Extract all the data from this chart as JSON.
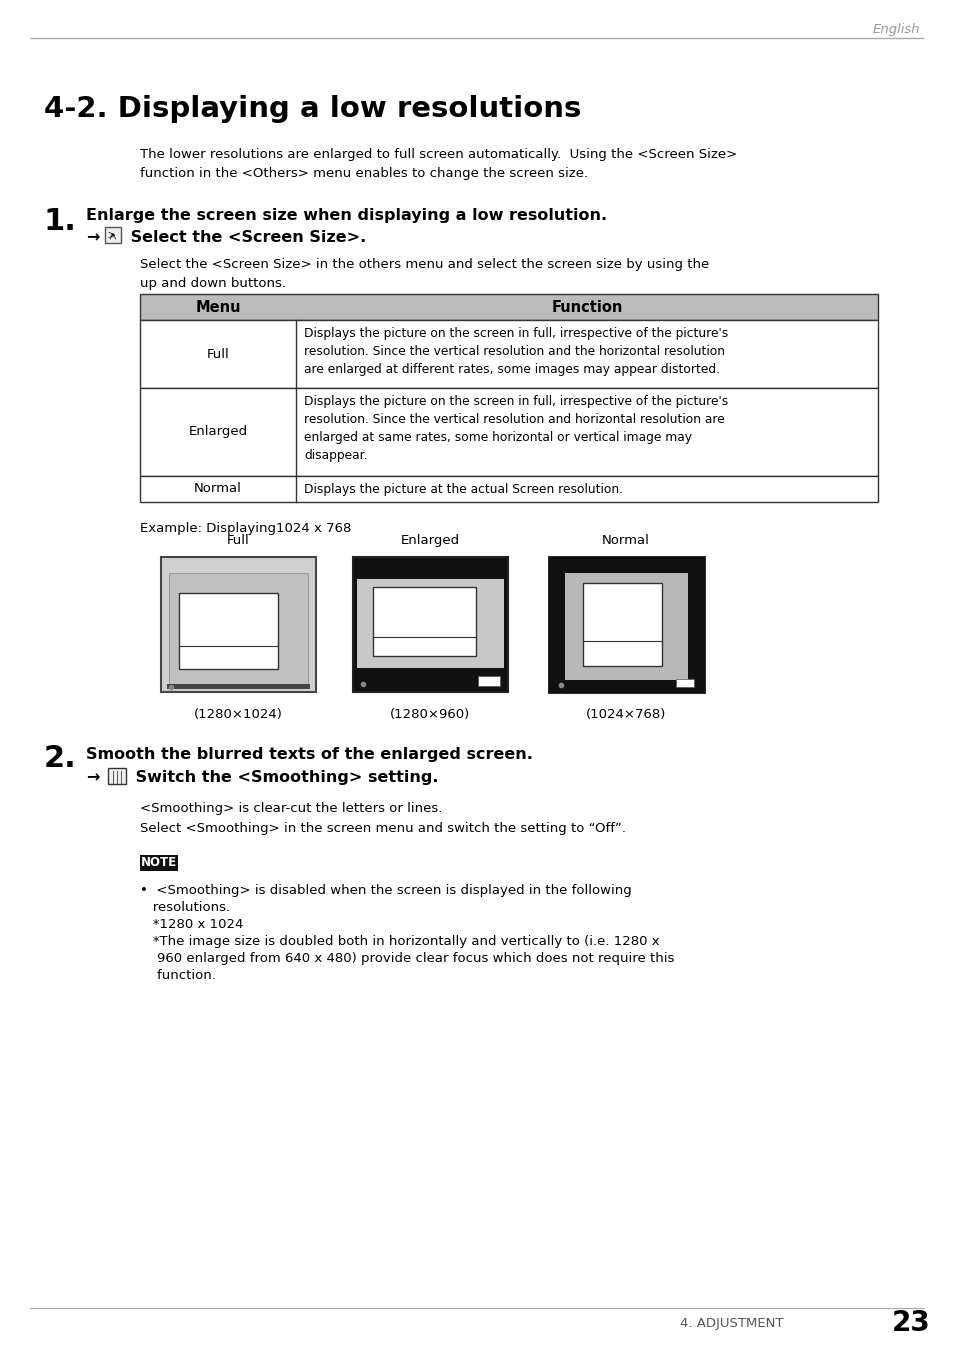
{
  "page_header_text": "English",
  "header_line_color": "#aaaaaa",
  "section_title": "4-2. Displaying a low resolutions",
  "intro_text": "The lower resolutions are enlarged to full screen automatically.  Using the <Screen Size>\nfunction in the <Others> menu enables to change the screen size.",
  "step1_number": "1.",
  "step1_bold": "Enlarge the screen size when displaying a low resolution.",
  "step1_sub_arrow": "→",
  "step1_sub_text": " Select the <Screen Size>.",
  "step1_desc": "Select the <Screen Size> in the others menu and select the screen size by using the\nup and down buttons.",
  "table_header_col1": "Menu",
  "table_header_col2": "Function",
  "table_header_bg": "#bbbbbb",
  "table_rows": [
    [
      "Full",
      "Displays the picture on the screen in full, irrespective of the picture's\nresolution. Since the vertical resolution and the horizontal resolution\nare enlarged at different rates, some images may appear distorted."
    ],
    [
      "Enlarged",
      "Displays the picture on the screen in full, irrespective of the picture's\nresolution. Since the vertical resolution and horizontal resolution are\nenlarged at same rates, some horizontal or vertical image may\ndisappear."
    ],
    [
      "Normal",
      "Displays the picture at the actual Screen resolution."
    ]
  ],
  "example_text": "Example: Displaying1024 x 768",
  "diagram_labels": [
    "Full",
    "Enlarged",
    "Normal"
  ],
  "diagram_captions": [
    "(1280×1024)",
    "(1280×960)",
    "(1024×768)"
  ],
  "step2_number": "2.",
  "step2_bold": "Smooth the blurred texts of the enlarged screen.",
  "step2_sub_arrow": "→",
  "step2_sub_text": " Switch the <Smoothing> setting.",
  "step2_desc1": "<Smoothing> is clear-cut the letters or lines.",
  "step2_desc2": "Select <Smoothing> in the screen menu and switch the setting to “Off”.",
  "note_label": "NOTE",
  "note_line1": "•  <Smoothing> is disabled when the screen is displayed in the following",
  "note_line2": "   resolutions.",
  "note_line3": "   *1280 x 1024",
  "note_line4": "   *The image size is doubled both in horizontally and vertically to (i.e. 1280 x",
  "note_line5": "    960 enlarged from 640 x 480) provide clear focus which does not require this",
  "note_line6": "    function.",
  "footer_text": "4. ADJUSTMENT",
  "footer_page": "23",
  "bg_color": "#ffffff",
  "text_color": "#000000"
}
